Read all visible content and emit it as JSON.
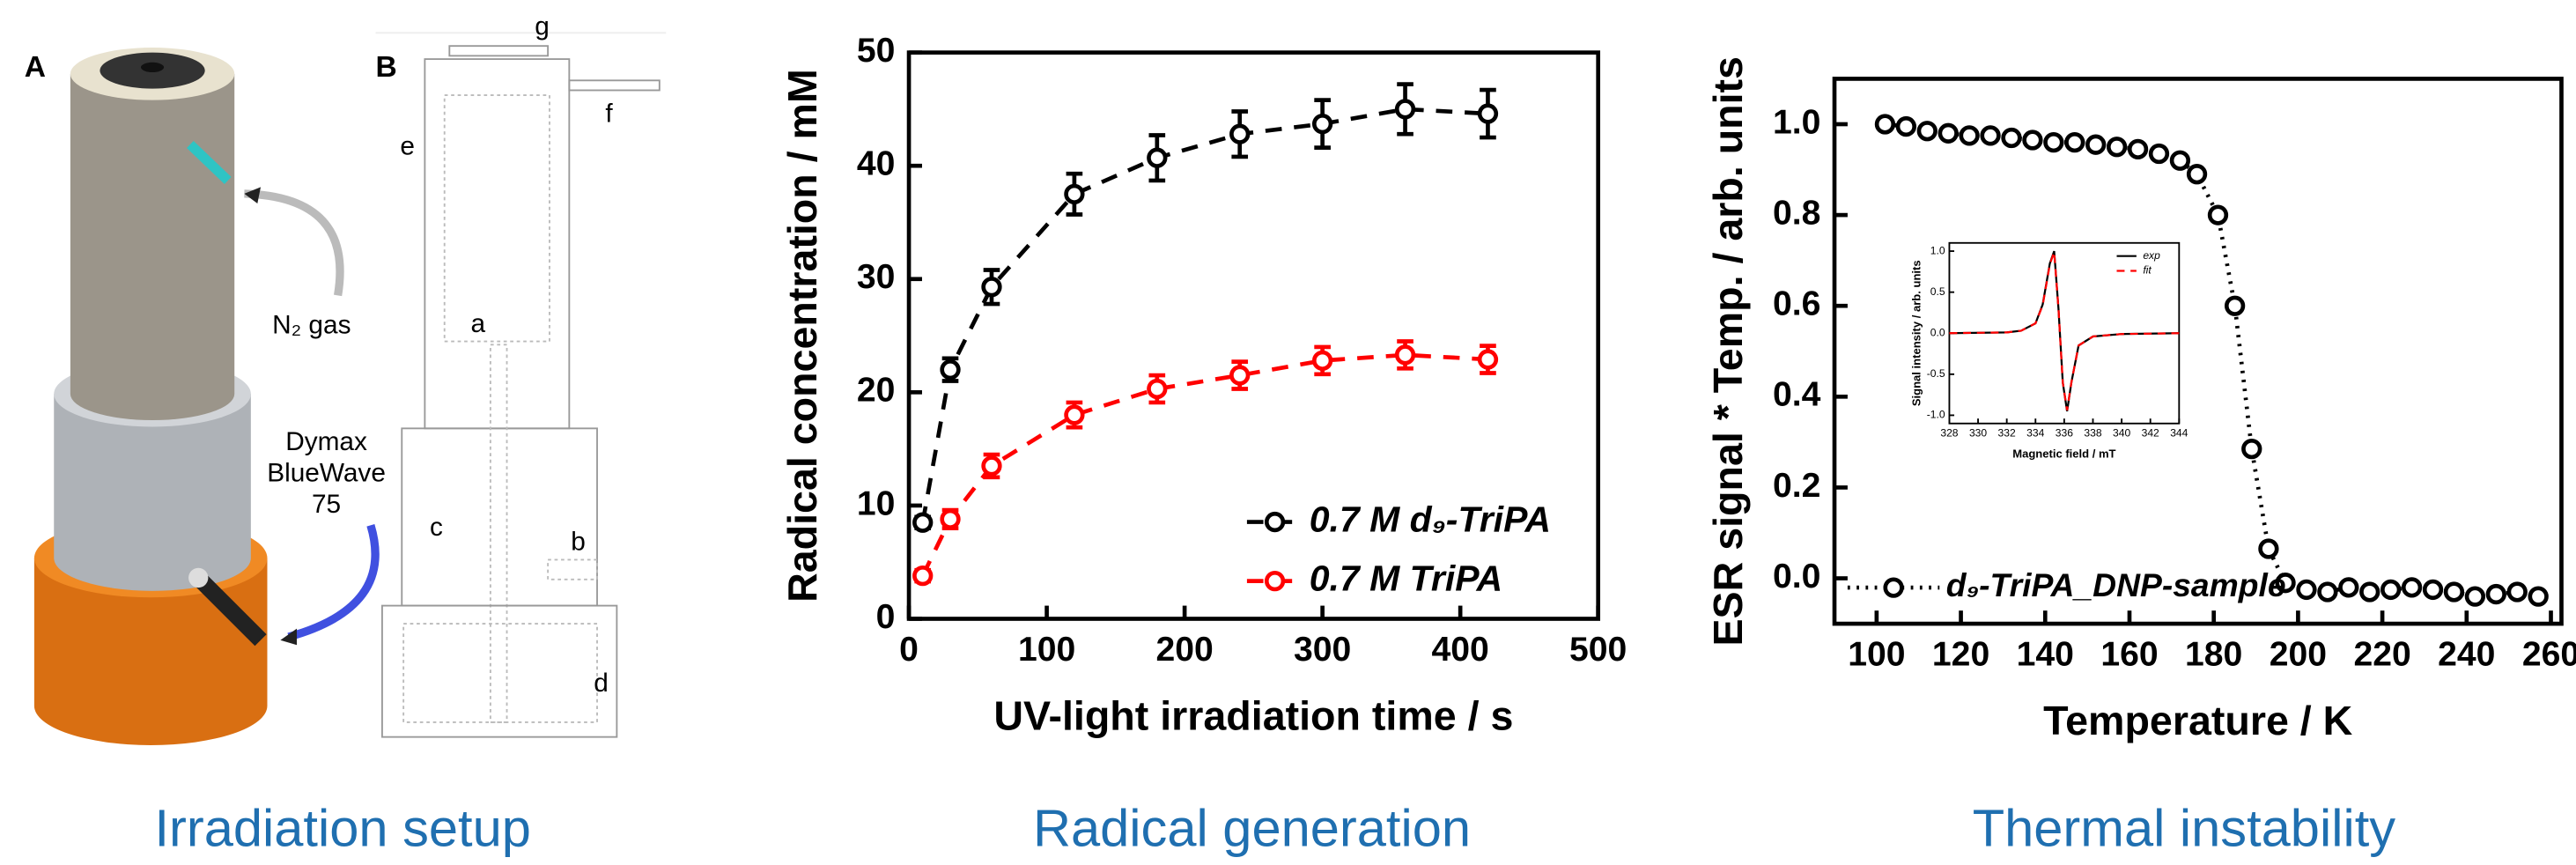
{
  "setup": {
    "panel_a": "A",
    "panel_b": "B",
    "gas": "N₂ gas",
    "lamp": [
      "Dymax",
      "BlueWave",
      "75"
    ],
    "parts": [
      "a",
      "b",
      "c",
      "d",
      "e",
      "f",
      "g"
    ],
    "caption": "Irradiation setup"
  },
  "chart_data": [
    {
      "type": "line",
      "caption": "Radical generation",
      "x_label": "UV-light irradiation time / s",
      "y_label": "Radical concentration / mM",
      "x": [
        10,
        30,
        60,
        120,
        180,
        240,
        300,
        360,
        420
      ],
      "series": [
        {
          "name": "0.7 M d₉-TriPA",
          "color": "#000000",
          "line_style": "dashed",
          "markers": true,
          "values": [
            8.5,
            22,
            29.3,
            37.5,
            40.7,
            42.8,
            43.7,
            45,
            44.6
          ],
          "errors": [
            0.5,
            1,
            1.5,
            1.8,
            2,
            2,
            2.1,
            2.2,
            2.1
          ]
        },
        {
          "name": "0.7 M TriPA",
          "color": "#ff0000",
          "line_style": "dashed",
          "markers": true,
          "values": [
            3.8,
            8.8,
            13.5,
            18,
            20.3,
            21.5,
            22.8,
            23.3,
            22.9
          ],
          "errors": [
            0.5,
            0.8,
            1,
            1.1,
            1.2,
            1.2,
            1.2,
            1.2,
            1.2
          ]
        }
      ],
      "xlim": [
        0,
        500
      ],
      "xticks": [
        0,
        100,
        200,
        300,
        400,
        500
      ],
      "ylim": [
        0,
        50
      ],
      "yticks": [
        0,
        10,
        20,
        30,
        40,
        50
      ],
      "legend": "lower right"
    },
    {
      "type": "line",
      "caption": "Thermal instability",
      "x_label": "Temperature / K",
      "y_label": "ESR signal * Temp. / arb. units",
      "x": [
        102,
        107,
        112,
        117,
        122,
        127,
        132,
        137,
        142,
        147,
        152,
        157,
        162,
        167,
        172,
        176,
        181,
        185,
        189,
        193,
        197,
        202,
        207,
        212,
        217,
        222,
        227,
        232,
        237,
        242,
        247,
        252,
        257
      ],
      "series": [
        {
          "name": "d₉-TriPA_DNP-sample",
          "color": "#000000",
          "line_style": "dotted",
          "markers": true,
          "values": [
            1.0,
            0.995,
            0.985,
            0.98,
            0.975,
            0.975,
            0.97,
            0.965,
            0.96,
            0.96,
            0.955,
            0.95,
            0.945,
            0.935,
            0.92,
            0.89,
            0.8,
            0.6,
            0.285,
            0.065,
            -0.01,
            -0.025,
            -0.03,
            -0.02,
            -0.03,
            -0.025,
            -0.02,
            -0.025,
            -0.03,
            -0.04,
            -0.035,
            -0.03,
            -0.04
          ]
        }
      ],
      "xlim": [
        90,
        262.5
      ],
      "xticks": [
        100,
        120,
        140,
        160,
        180,
        200,
        220,
        240,
        260
      ],
      "ylim": [
        -0.1,
        1.1
      ],
      "yticks": [
        {
          "value": 0,
          "label": "0.0"
        },
        0.2,
        0.4,
        0.6,
        0.8,
        {
          "value": 1,
          "label": "1.0"
        }
      ],
      "legend": "lower left"
    },
    {
      "type": "line",
      "x_label": "Magnetic field / mT",
      "y_label": "Signal intensity / arb. units",
      "x": [
        328,
        332,
        333,
        334,
        334.5,
        335,
        335.3,
        335.6,
        335.9,
        336.2,
        336.5,
        337,
        338,
        340,
        344
      ],
      "series": [
        {
          "name": "exp",
          "color": "#000000",
          "line_style": "solid",
          "markers": false,
          "values": [
            0,
            0.01,
            0.03,
            0.12,
            0.35,
            0.85,
            1.0,
            0.3,
            -0.6,
            -0.95,
            -0.6,
            -0.15,
            -0.04,
            -0.01,
            0
          ]
        },
        {
          "name": "fit",
          "color": "#ff0000",
          "line_style": "dashed",
          "markers": false,
          "values": [
            0,
            0.01,
            0.03,
            0.12,
            0.34,
            0.84,
            0.99,
            0.3,
            -0.6,
            -0.94,
            -0.6,
            -0.15,
            -0.04,
            -0.01,
            0
          ]
        }
      ],
      "xlim": [
        328,
        344
      ],
      "xticks": [
        328,
        330,
        332,
        334,
        336,
        338,
        340,
        342,
        344
      ],
      "ylim": [
        -1.1,
        1.1
      ],
      "yticks": [
        {
          "value": -1,
          "label": "-1.0"
        },
        -0.5,
        {
          "value": 0,
          "label": "0.0"
        },
        0.5,
        {
          "value": 1,
          "label": "1.0"
        }
      ],
      "legend": "upper right"
    }
  ]
}
